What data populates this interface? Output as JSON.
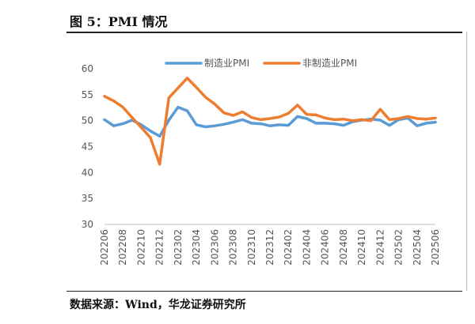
{
  "header": {
    "title": "图 5：PMI 情况"
  },
  "footer": {
    "source": "数据来源：Wind，华龙证券研究所"
  },
  "chart_data": {
    "type": "line",
    "x": [
      "202206",
      "202207",
      "202208",
      "202209",
      "202210",
      "202211",
      "202212",
      "202301",
      "202302",
      "202303",
      "202304",
      "202305",
      "202306",
      "202307",
      "202308",
      "202309",
      "202310",
      "202311",
      "202312",
      "202401",
      "202402",
      "202403",
      "202404",
      "202405",
      "202406",
      "202407",
      "202408",
      "202409",
      "202410",
      "202411",
      "202412",
      "202501",
      "202502",
      "202503",
      "202504",
      "202505",
      "202506"
    ],
    "x_tick_labels": [
      "202206",
      "202208",
      "202210",
      "202212",
      "202302",
      "202304",
      "202306",
      "202308",
      "202310",
      "202312",
      "202402",
      "202404",
      "202406",
      "202408",
      "202410",
      "202412",
      "202502",
      "202504",
      "202506"
    ],
    "series": [
      {
        "name": "制造业PMI",
        "color": "#5B9BD5",
        "values": [
          50.2,
          49.0,
          49.4,
          50.1,
          49.2,
          48.0,
          47.0,
          50.1,
          52.6,
          51.9,
          49.2,
          48.8,
          49.0,
          49.3,
          49.7,
          50.2,
          49.5,
          49.4,
          49.0,
          49.2,
          49.1,
          50.8,
          50.4,
          49.5,
          49.5,
          49.4,
          49.1,
          49.8,
          50.1,
          50.3,
          50.1,
          49.1,
          50.2,
          50.5,
          49.0,
          49.5,
          49.7
        ]
      },
      {
        "name": "非制造业PMI",
        "color": "#ED7D31",
        "values": [
          54.7,
          53.8,
          52.6,
          50.6,
          48.7,
          46.7,
          41.6,
          54.4,
          56.3,
          58.2,
          56.4,
          54.5,
          53.2,
          51.5,
          51.0,
          51.7,
          50.6,
          50.2,
          50.4,
          50.7,
          51.4,
          53.0,
          51.2,
          51.1,
          50.5,
          50.2,
          50.3,
          50.0,
          50.2,
          50.0,
          52.2,
          50.2,
          50.4,
          50.8,
          50.4,
          50.3,
          50.5
        ]
      }
    ],
    "ylim": [
      30,
      60
    ],
    "yticks": [
      30,
      35,
      40,
      45,
      50,
      55,
      60
    ],
    "grid": false,
    "legend": "top-center"
  }
}
